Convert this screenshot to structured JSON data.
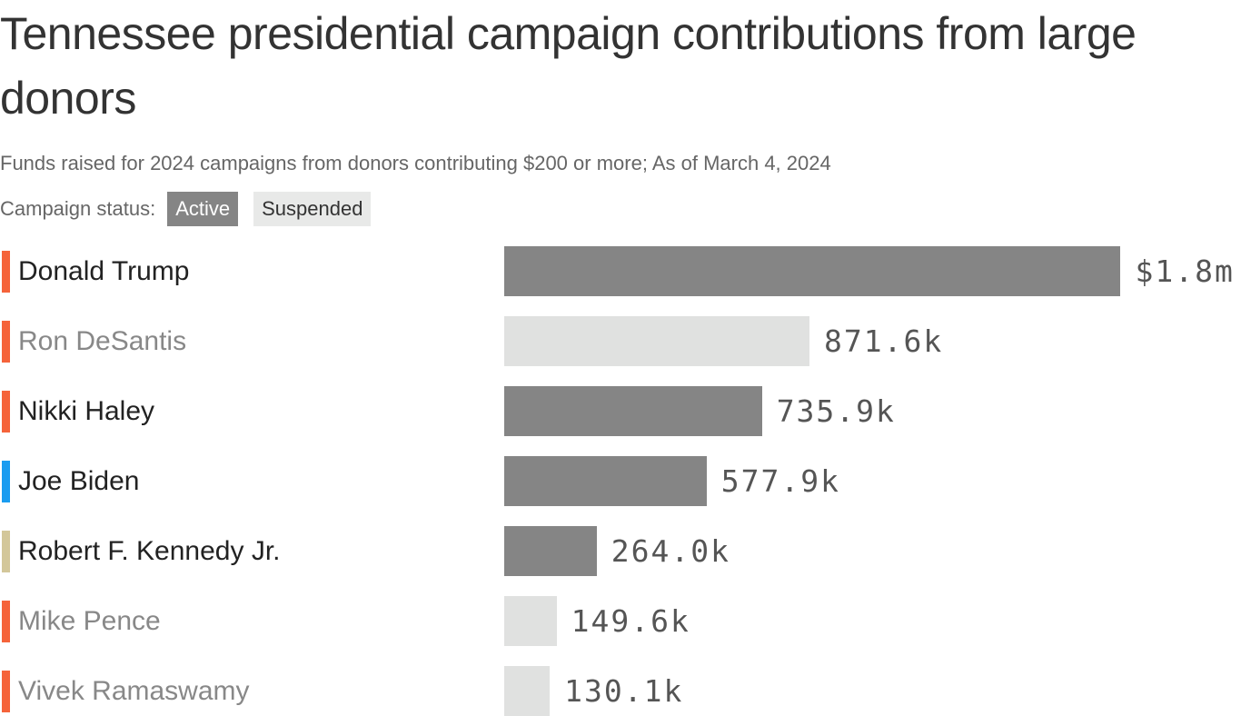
{
  "chart_data": {
    "type": "bar",
    "orientation": "horizontal",
    "title": "Tennessee presidential campaign contributions from large donors",
    "subtitle": "Funds raised for 2024 campaigns from donors contributing $200 or more; As of March 4, 2024",
    "legend": {
      "label": "Campaign status:",
      "entries": [
        {
          "name": "Active",
          "color": "#858585"
        },
        {
          "name": "Suspended",
          "color": "#e0e1e0"
        }
      ],
      "placement": "top-left"
    },
    "unit": "thousands of dollars",
    "party_colors": {
      "republican": "#f5633a",
      "democrat": "#1a9cf0",
      "independent": "#d3c79a"
    },
    "rows": [
      {
        "name": "Donald Trump",
        "value": 1760,
        "label": "$1.8m",
        "status": "Active",
        "party": "republican"
      },
      {
        "name": "Ron DeSantis",
        "value": 871.6,
        "label": "871.6k",
        "status": "Suspended",
        "party": "republican"
      },
      {
        "name": "Nikki Haley",
        "value": 735.9,
        "label": "735.9k",
        "status": "Active",
        "party": "republican"
      },
      {
        "name": "Joe Biden",
        "value": 577.9,
        "label": "577.9k",
        "status": "Active",
        "party": "democrat"
      },
      {
        "name": "Robert F. Kennedy Jr.",
        "value": 264.0,
        "label": "264.0k",
        "status": "Active",
        "party": "independent"
      },
      {
        "name": "Mike Pence",
        "value": 149.6,
        "label": "149.6k",
        "status": "Suspended",
        "party": "republican"
      },
      {
        "name": "Vivek Ramaswamy",
        "value": 130.1,
        "label": "130.1k",
        "status": "Suspended",
        "party": "republican"
      }
    ]
  }
}
